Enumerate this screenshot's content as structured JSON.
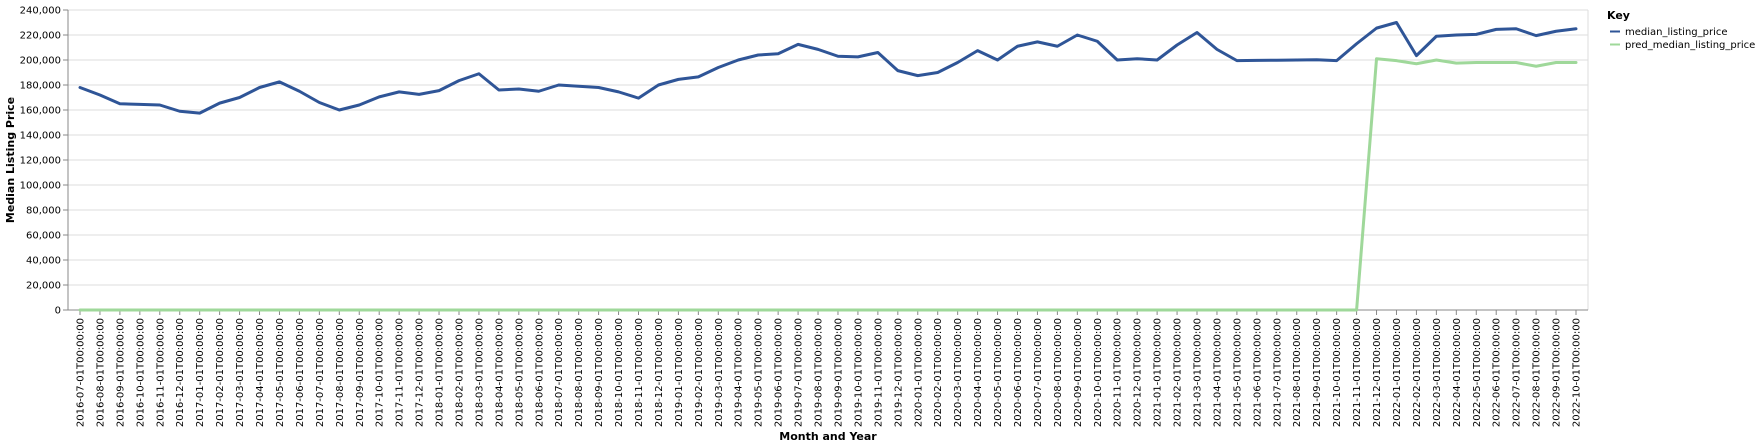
{
  "chart_data": {
    "type": "line",
    "title": "",
    "xlabel": "Month and Year",
    "ylabel": "Median Listing Price",
    "ylim": [
      0,
      240000
    ],
    "y_ticks": [
      0,
      20000,
      40000,
      60000,
      80000,
      100000,
      120000,
      140000,
      160000,
      180000,
      200000,
      220000,
      240000
    ],
    "grid": true,
    "legend": {
      "title": "Key",
      "placement": "top-right"
    },
    "x": [
      "2016-07-01T00:00:00",
      "2016-08-01T00:00:00",
      "2016-09-01T00:00:00",
      "2016-10-01T00:00:00",
      "2016-11-01T00:00:00",
      "2016-12-01T00:00:00",
      "2017-01-01T00:00:00",
      "2017-02-01T00:00:00",
      "2017-03-01T00:00:00",
      "2017-04-01T00:00:00",
      "2017-05-01T00:00:00",
      "2017-06-01T00:00:00",
      "2017-07-01T00:00:00",
      "2017-08-01T00:00:00",
      "2017-09-01T00:00:00",
      "2017-10-01T00:00:00",
      "2017-11-01T00:00:00",
      "2017-12-01T00:00:00",
      "2018-01-01T00:00:00",
      "2018-02-01T00:00:00",
      "2018-03-01T00:00:00",
      "2018-04-01T00:00:00",
      "2018-05-01T00:00:00",
      "2018-06-01T00:00:00",
      "2018-07-01T00:00:00",
      "2018-08-01T00:00:00",
      "2018-09-01T00:00:00",
      "2018-10-01T00:00:00",
      "2018-11-01T00:00:00",
      "2018-12-01T00:00:00",
      "2019-01-01T00:00:00",
      "2019-02-01T00:00:00",
      "2019-03-01T00:00:00",
      "2019-04-01T00:00:00",
      "2019-05-01T00:00:00",
      "2019-06-01T00:00:00",
      "2019-07-01T00:00:00",
      "2019-08-01T00:00:00",
      "2019-09-01T00:00:00",
      "2019-10-01T00:00:00",
      "2019-11-01T00:00:00",
      "2019-12-01T00:00:00",
      "2020-01-01T00:00:00",
      "2020-02-01T00:00:00",
      "2020-03-01T00:00:00",
      "2020-04-01T00:00:00",
      "2020-05-01T00:00:00",
      "2020-06-01T00:00:00",
      "2020-07-01T00:00:00",
      "2020-08-01T00:00:00",
      "2020-09-01T00:00:00",
      "2020-10-01T00:00:00",
      "2020-11-01T00:00:00",
      "2020-12-01T00:00:00",
      "2021-01-01T00:00:00",
      "2021-02-01T00:00:00",
      "2021-03-01T00:00:00",
      "2021-04-01T00:00:00",
      "2021-05-01T00:00:00",
      "2021-06-01T00:00:00",
      "2021-07-01T00:00:00",
      "2021-08-01T00:00:00",
      "2021-09-01T00:00:00",
      "2021-10-01T00:00:00",
      "2021-11-01T00:00:00",
      "2021-12-01T00:00:00",
      "2022-01-01T00:00:00",
      "2022-02-01T00:00:00",
      "2022-03-01T00:00:00",
      "2022-04-01T00:00:00",
      "2022-05-01T00:00:00",
      "2022-06-01T00:00:00",
      "2022-07-01T00:00:00",
      "2022-08-01T00:00:00",
      "2022-09-01T00:00:00",
      "2022-10-01T00:00:00"
    ],
    "series": [
      {
        "name": "median_listing_price",
        "color": "#2f5597",
        "values": [
          178000,
          172000,
          165000,
          164500,
          164000,
          159000,
          157500,
          165500,
          170000,
          178000,
          182500,
          175000,
          166000,
          160000,
          164000,
          170500,
          174500,
          172500,
          175500,
          183500,
          189000,
          176000,
          176800,
          175000,
          180000,
          179000,
          178000,
          174500,
          169500,
          180000,
          184500,
          186500,
          194000,
          200000,
          204000,
          205000,
          212500,
          208500,
          203000,
          202500,
          206000,
          191500,
          187500,
          190000,
          198000,
          207500,
          200000,
          211000,
          214500,
          211000,
          220000,
          215000,
          200000,
          201000,
          200000,
          212000,
          222000,
          208500,
          199500,
          199700,
          199800,
          200000,
          200200,
          199500,
          213000,
          225500,
          230000,
          203500,
          219000,
          220000,
          220500,
          224500,
          225000,
          219500,
          223000,
          225000
        ]
      },
      {
        "name": "pred_median_listing_price",
        "color": "#9fd89a",
        "values": [
          0,
          0,
          0,
          0,
          0,
          0,
          0,
          0,
          0,
          0,
          0,
          0,
          0,
          0,
          0,
          0,
          0,
          0,
          0,
          0,
          0,
          0,
          0,
          0,
          0,
          0,
          0,
          0,
          0,
          0,
          0,
          0,
          0,
          0,
          0,
          0,
          0,
          0,
          0,
          0,
          0,
          0,
          0,
          0,
          0,
          0,
          0,
          0,
          0,
          0,
          0,
          0,
          0,
          0,
          0,
          0,
          0,
          0,
          0,
          0,
          0,
          0,
          0,
          0,
          0,
          201000,
          199500,
          197000,
          200000,
          197500,
          198000,
          198000,
          198000,
          195000,
          198000,
          198000
        ]
      }
    ]
  }
}
